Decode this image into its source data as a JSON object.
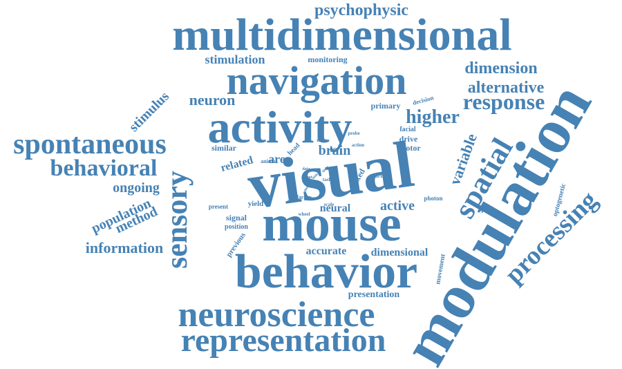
{
  "word_color": "#4682b4",
  "background_color": "#ffffff",
  "words": [
    {
      "text": "multidimensional",
      "weight": 68
    },
    {
      "text": "psychophysic",
      "weight": 24
    },
    {
      "text": "stimulation",
      "weight": 18
    },
    {
      "text": "monitoring",
      "weight": 12
    },
    {
      "text": "navigation",
      "weight": 60
    },
    {
      "text": "dimension",
      "weight": 24
    },
    {
      "text": "alternative",
      "weight": 24
    },
    {
      "text": "neuron",
      "weight": 22
    },
    {
      "text": "primary",
      "weight": 12
    },
    {
      "text": "decision",
      "weight": 9
    },
    {
      "text": "response",
      "weight": 32
    },
    {
      "text": "activity",
      "weight": 68
    },
    {
      "text": "higher",
      "weight": 28
    },
    {
      "text": "stimulus",
      "weight": 20
    },
    {
      "text": "spontaneous",
      "weight": 42
    },
    {
      "text": "behavioral",
      "weight": 36
    },
    {
      "text": "sensory",
      "weight": 44
    },
    {
      "text": "similar",
      "weight": 12
    },
    {
      "text": "related",
      "weight": 16
    },
    {
      "text": "head",
      "weight": 10
    },
    {
      "text": "more",
      "weight": 7
    },
    {
      "text": "area",
      "weight": 18
    },
    {
      "text": "brain",
      "weight": 20
    },
    {
      "text": "animal",
      "weight": 8
    },
    {
      "text": "probe",
      "weight": 7
    },
    {
      "text": "action",
      "weight": 7
    },
    {
      "text": "facial",
      "weight": 10
    },
    {
      "text": "drive",
      "weight": 12
    },
    {
      "text": "motor",
      "weight": 12
    },
    {
      "text": "variable",
      "weight": 22
    },
    {
      "text": "spatial",
      "weight": 44
    },
    {
      "text": "visual",
      "weight": 100
    },
    {
      "text": "data",
      "weight": 6
    },
    {
      "text": "input",
      "weight": 6
    },
    {
      "text": "time",
      "weight": 6
    },
    {
      "text": "noise",
      "weight": 6
    },
    {
      "text": "task",
      "weight": 7
    },
    {
      "text": "model",
      "weight": 6
    },
    {
      "text": "state",
      "weight": 6
    },
    {
      "text": "fixed",
      "weight": 12
    },
    {
      "text": "arise",
      "weight": 8
    },
    {
      "text": "ongoing",
      "weight": 20
    },
    {
      "text": "population",
      "weight": 20
    },
    {
      "text": "method",
      "weight": 20
    },
    {
      "text": "information",
      "weight": 22
    },
    {
      "text": "present",
      "weight": 9
    },
    {
      "text": "yield",
      "weight": 11
    },
    {
      "text": "larger",
      "weight": 8
    },
    {
      "text": "wheel",
      "weight": 7
    },
    {
      "text": "scale",
      "weight": 7
    },
    {
      "text": "signal",
      "weight": 12
    },
    {
      "text": "position",
      "weight": 10
    },
    {
      "text": "previous",
      "weight": 11
    },
    {
      "text": "neural",
      "weight": 16
    },
    {
      "text": "active",
      "weight": 20
    },
    {
      "text": "photon",
      "weight": 9
    },
    {
      "text": "optogenetic",
      "weight": 10
    },
    {
      "text": "mouse",
      "weight": 76
    },
    {
      "text": "accurate",
      "weight": 16
    },
    {
      "text": "dimensional",
      "weight": 16
    },
    {
      "text": "movement",
      "weight": 10
    },
    {
      "text": "processing",
      "weight": 38
    },
    {
      "text": "modulation",
      "weight": 92
    },
    {
      "text": "behavior",
      "weight": 70
    },
    {
      "text": "presentation",
      "weight": 14
    },
    {
      "text": "neuroscience",
      "weight": 54
    },
    {
      "text": "representation",
      "weight": 48
    }
  ]
}
